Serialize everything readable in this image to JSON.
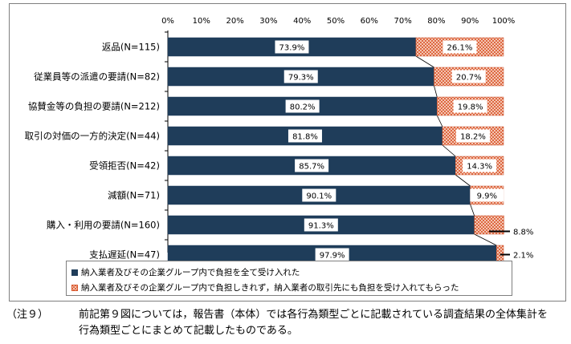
{
  "chart_data": {
    "type": "bar",
    "orientation": "horizontal",
    "stacked": true,
    "categories": [
      "返品(N=115)",
      "従業員等の派遣の要請(N=82)",
      "協賛金等の負担の要請(N=212)",
      "取引の対価の一方的決定(N=44)",
      "受領拒否(N=42)",
      "減額(N=71)",
      "購入・利用の要請(N=160)",
      "支払遅延(N=47)"
    ],
    "series": [
      {
        "name": "納入業者及びその企業グループ内で負担を全て受け入れた",
        "values": [
          73.9,
          79.3,
          80.2,
          81.8,
          85.7,
          90.1,
          91.3,
          97.9
        ],
        "labels": [
          "73.9%",
          "79.3%",
          "80.2%",
          "81.8%",
          "85.7%",
          "90.1%",
          "91.3%",
          "97.9%"
        ],
        "color": "#1f3d5a",
        "pattern": "solid"
      },
      {
        "name": "納入業者及びその企業グループ内で負担しきれず，納入業者の取引先にも負担を受け入れてもらった",
        "values": [
          26.1,
          20.7,
          19.8,
          18.2,
          14.3,
          9.9,
          8.8,
          2.1
        ],
        "labels": [
          "26.1%",
          "20.7%",
          "19.8%",
          "18.2%",
          "14.3%",
          "9.9%",
          "8.8%",
          "2.1%"
        ],
        "color": "#e06030",
        "pattern": "crosshatch"
      }
    ],
    "xlim": [
      0,
      100
    ],
    "xticks": [
      "0%",
      "10%",
      "20%",
      "30%",
      "40%",
      "50%",
      "60%",
      "70%",
      "80%",
      "90%",
      "100%"
    ],
    "xaxis_position": "top",
    "gridlines": false,
    "series_lines": true,
    "legend_position": "bottom"
  },
  "note": {
    "label": "（注９）",
    "line1": "前記第９図については，報告書（本体）では各行為類型ごとに記載されている調査結果の全体集計を",
    "line2": "行為類型ごとにまとめて記載したものである。"
  }
}
